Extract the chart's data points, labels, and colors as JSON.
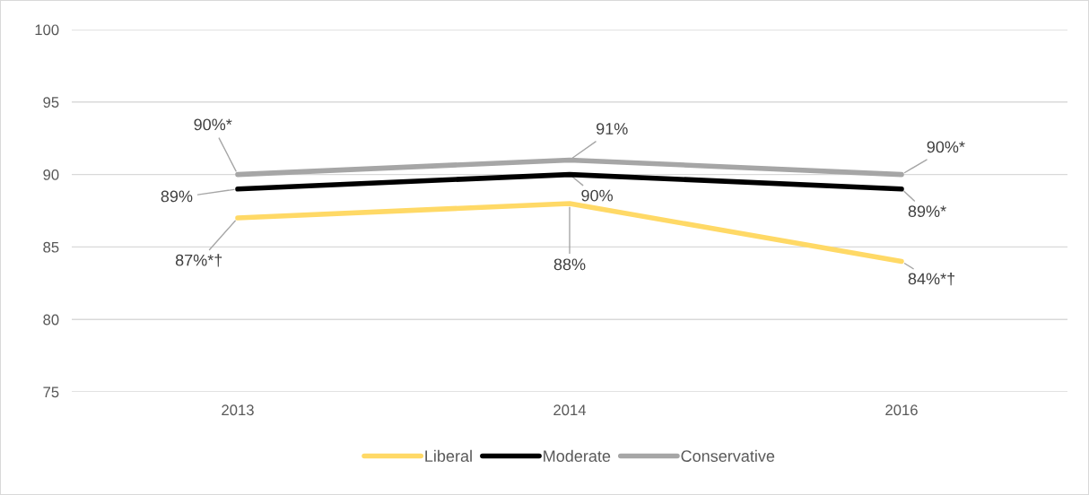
{
  "chart_data": {
    "type": "line",
    "categories": [
      "2013",
      "2014",
      "2016"
    ],
    "series": [
      {
        "name": "Liberal",
        "color": "#ffd966",
        "values": [
          87,
          88,
          84
        ],
        "value_labels": [
          "87%*†",
          "88%",
          "84%*†"
        ]
      },
      {
        "name": "Moderate",
        "color": "#000000",
        "values": [
          89,
          90,
          89
        ],
        "value_labels": [
          "89%",
          "90%",
          "89%*"
        ]
      },
      {
        "name": "Conservative",
        "color": "#a6a6a6",
        "values": [
          90,
          91,
          90
        ],
        "value_labels": [
          "90%*",
          "91%",
          "90%*"
        ]
      }
    ],
    "ylim": [
      75,
      100
    ],
    "yticks": [
      75,
      80,
      85,
      90,
      95,
      100
    ],
    "grid": "y",
    "legend": "bottom",
    "marker": "none",
    "line_style": "solid"
  }
}
